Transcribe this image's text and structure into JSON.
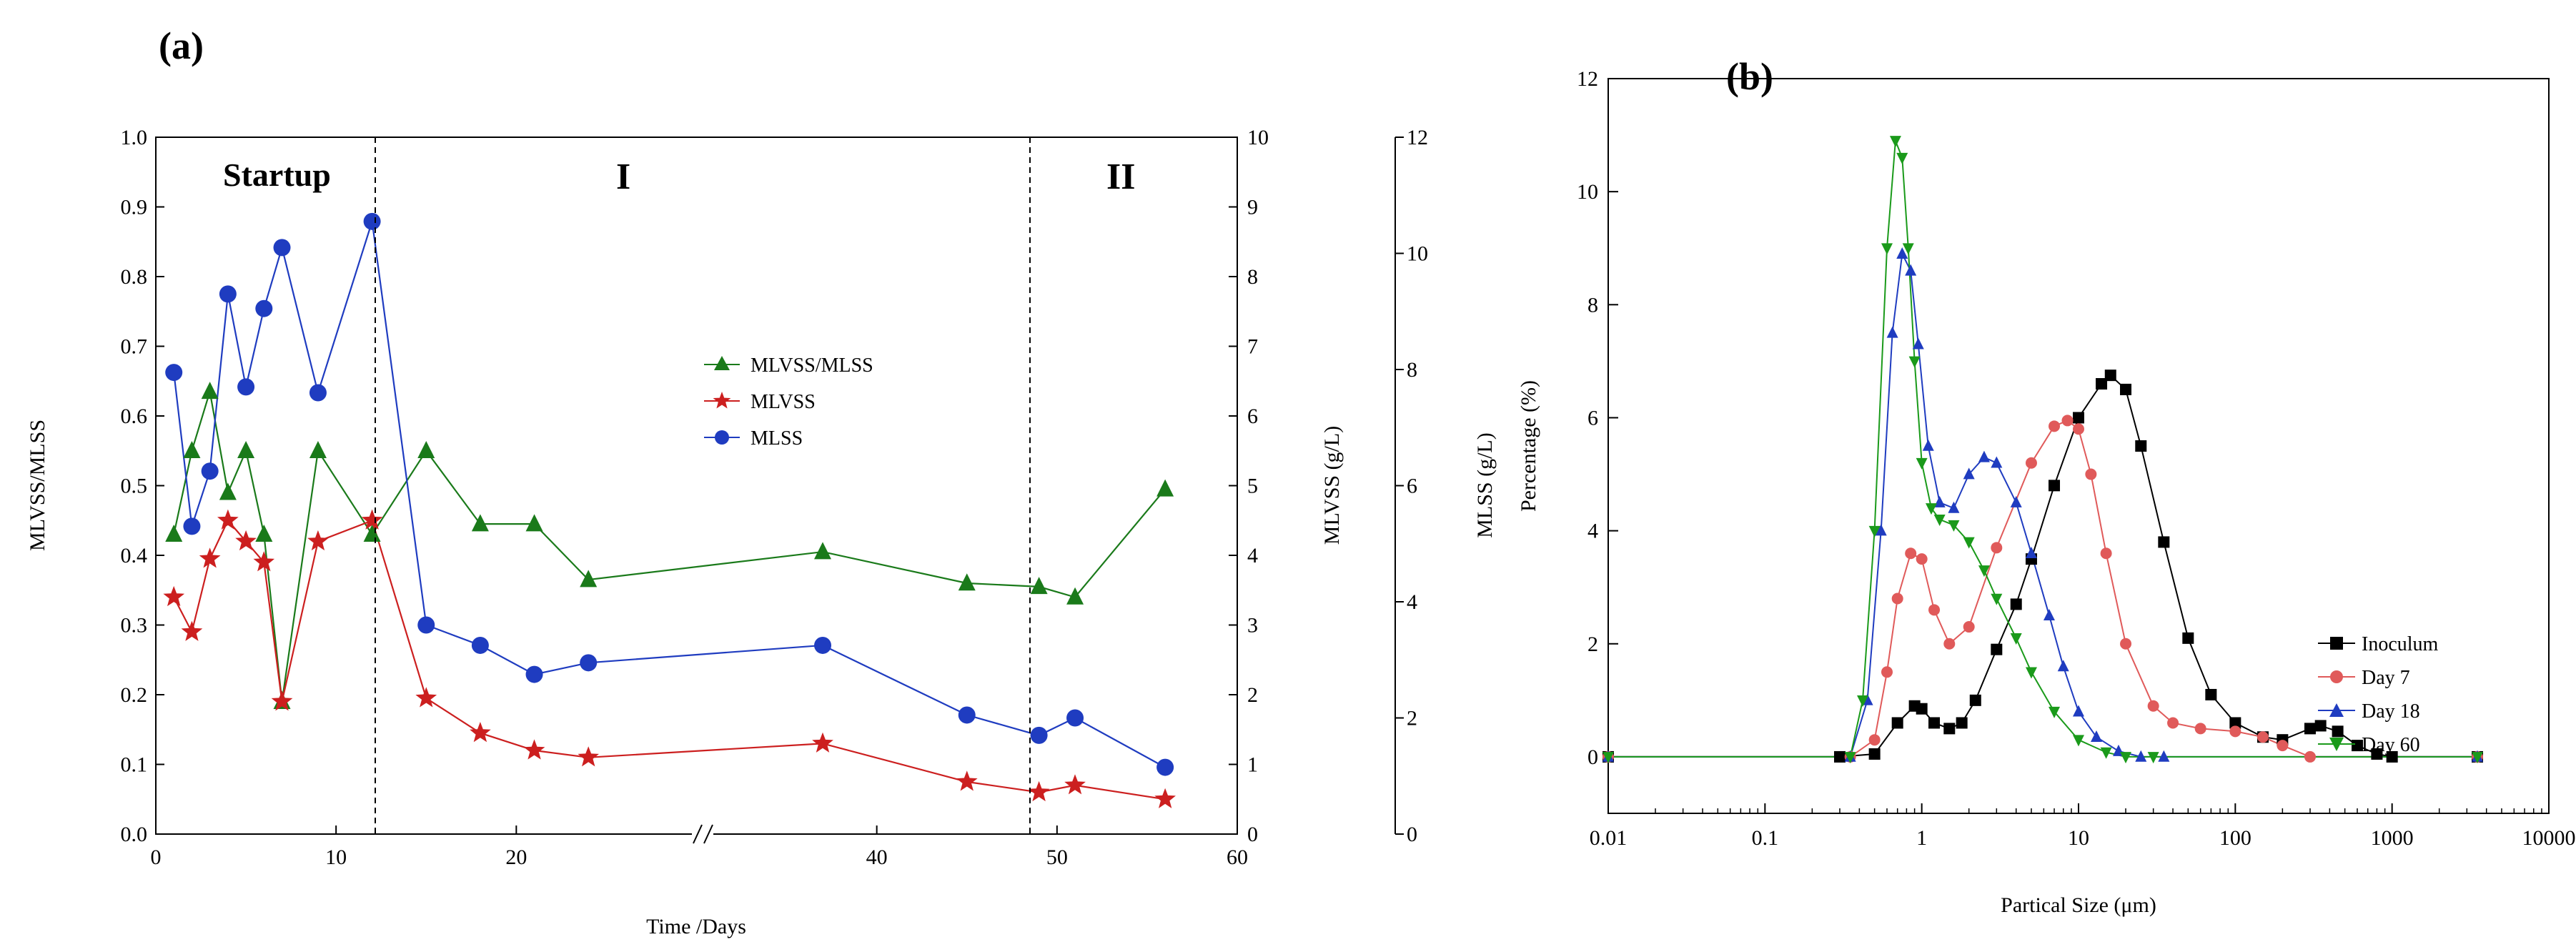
{
  "chart_data": [
    {
      "type": "line",
      "panel_label": "(a)",
      "xlabel": "Time /Days",
      "ylabel_left": "MLVSS/MLSS",
      "ylabel_right1": "MLVSS (g/L)",
      "ylabel_right2": "MLSS (g/L)",
      "xlim": [
        0,
        60
      ],
      "x_ticks": [
        "0",
        "10",
        "20",
        "40",
        "50",
        "60"
      ],
      "x_break": "//",
      "ylim_left": [
        0,
        1.0
      ],
      "y_ticks_left": [
        "0.0",
        "0.1",
        "0.2",
        "0.3",
        "0.4",
        "0.5",
        "0.6",
        "0.7",
        "0.8",
        "0.9",
        "1.0"
      ],
      "ylim_right1": [
        0,
        10
      ],
      "y_ticks_right1": [
        "0",
        "1",
        "2",
        "3",
        "4",
        "5",
        "6",
        "7",
        "8",
        "9",
        "10"
      ],
      "ylim_right2": [
        0,
        12
      ],
      "y_ticks_right2": [
        "0",
        "2",
        "4",
        "6",
        "8",
        "10",
        "12"
      ],
      "regions": [
        {
          "label": "Startup",
          "boundary_day": 10.3
        },
        {
          "label": "I",
          "boundary_day": 50
        },
        {
          "label": "II"
        }
      ],
      "legend_position": "center-right",
      "series": [
        {
          "name": "MLVSS/MLSS",
          "axis": "left",
          "marker": "triangle-up",
          "color": "#1a7a1a",
          "x": [
            1,
            2,
            3,
            4,
            5,
            6,
            7,
            9,
            12,
            15,
            18,
            21,
            24,
            37,
            45,
            49,
            51,
            56
          ],
          "values": [
            0.43,
            0.55,
            0.635,
            0.49,
            0.55,
            0.43,
            0.19,
            0.55,
            0.43,
            0.55,
            0.445,
            0.445,
            0.365,
            0.405,
            0.36,
            0.355,
            0.34,
            0.495
          ]
        },
        {
          "name": "MLVSS",
          "axis": "right1",
          "marker": "star",
          "color": "#cc1f1f",
          "x": [
            1,
            2,
            3,
            4,
            5,
            6,
            7,
            9,
            12,
            15,
            18,
            21,
            24,
            37,
            45,
            49,
            51,
            56
          ],
          "values": [
            3.4,
            2.9,
            3.95,
            4.5,
            4.2,
            3.9,
            1.9,
            4.2,
            4.5,
            1.95,
            1.45,
            1.2,
            1.1,
            1.3,
            0.75,
            0.6,
            0.7,
            0.5
          ]
        },
        {
          "name": "MLSS",
          "axis": "right2",
          "marker": "circle",
          "color": "#1f3cc0",
          "x": [
            1,
            2,
            3,
            4,
            5,
            6,
            7,
            9,
            12,
            15,
            18,
            21,
            24,
            37,
            45,
            49,
            51,
            56
          ],
          "values": [
            7.95,
            5.3,
            6.25,
            9.3,
            7.7,
            9.05,
            10.1,
            7.6,
            10.55,
            3.6,
            3.25,
            2.75,
            2.95,
            3.25,
            2.05,
            1.7,
            2.0,
            1.15
          ]
        }
      ]
    },
    {
      "type": "line",
      "panel_label": "(b)",
      "xlabel": "Partical Size (μm)",
      "ylabel": "Percentage (%)",
      "xscale": "log",
      "xlim": [
        0.01,
        10000
      ],
      "x_ticks": [
        "0.01",
        "0.1",
        "1",
        "10",
        "100",
        "1000",
        "10000"
      ],
      "ylim": [
        -1,
        12
      ],
      "y_ticks": [
        "0",
        "2",
        "4",
        "6",
        "8",
        "10",
        "12"
      ],
      "legend_position": "right",
      "series": [
        {
          "name": "Inoculum",
          "marker": "square",
          "color": "#000000",
          "x": [
            0.01,
            0.3,
            0.5,
            0.7,
            0.9,
            1.0,
            1.2,
            1.5,
            1.8,
            2.2,
            3.0,
            4.0,
            5.0,
            7.0,
            10,
            14,
            16,
            20,
            25,
            35,
            50,
            70,
            100,
            150,
            200,
            300,
            350,
            450,
            600,
            800,
            1000,
            3500
          ],
          "values": [
            0,
            0,
            0.05,
            0.6,
            0.9,
            0.85,
            0.6,
            0.5,
            0.6,
            1.0,
            1.9,
            2.7,
            3.5,
            4.8,
            6.0,
            6.6,
            6.75,
            6.5,
            5.5,
            3.8,
            2.1,
            1.1,
            0.6,
            0.35,
            0.3,
            0.5,
            0.55,
            0.45,
            0.2,
            0.05,
            0,
            0
          ]
        },
        {
          "name": "Day 7",
          "marker": "circle",
          "color": "#e05a5a",
          "x": [
            0.01,
            0.35,
            0.5,
            0.6,
            0.7,
            0.85,
            1.0,
            1.2,
            1.5,
            2.0,
            3.0,
            5.0,
            7.0,
            8.5,
            10,
            12,
            15,
            20,
            30,
            40,
            60,
            100,
            150,
            200,
            300,
            3500
          ],
          "values": [
            0,
            0,
            0.3,
            1.5,
            2.8,
            3.6,
            3.5,
            2.6,
            2.0,
            2.3,
            3.7,
            5.2,
            5.85,
            5.95,
            5.8,
            5.0,
            3.6,
            2.0,
            0.9,
            0.6,
            0.5,
            0.45,
            0.35,
            0.2,
            0,
            0
          ]
        },
        {
          "name": "Day 18",
          "marker": "triangle-up",
          "color": "#1f3cc0",
          "x": [
            0.01,
            0.35,
            0.45,
            0.55,
            0.65,
            0.75,
            0.85,
            0.95,
            1.1,
            1.3,
            1.6,
            2.0,
            2.5,
            3.0,
            4.0,
            5.0,
            6.5,
            8.0,
            10,
            13,
            18,
            25,
            35,
            3500
          ],
          "values": [
            0,
            0,
            1.0,
            4.0,
            7.5,
            8.9,
            8.6,
            7.3,
            5.5,
            4.5,
            4.4,
            5.0,
            5.3,
            5.2,
            4.5,
            3.6,
            2.5,
            1.6,
            0.8,
            0.35,
            0.1,
            0,
            0,
            0
          ]
        },
        {
          "name": "Day 60",
          "marker": "triangle-down",
          "color": "#1a9a1a",
          "x": [
            0.01,
            0.35,
            0.42,
            0.5,
            0.6,
            0.68,
            0.75,
            0.82,
            0.9,
            1.0,
            1.15,
            1.3,
            1.6,
            2.0,
            2.5,
            3.0,
            4.0,
            5.0,
            7.0,
            10,
            15,
            20,
            30,
            3500
          ],
          "values": [
            0,
            0,
            1.0,
            4.0,
            9.0,
            10.9,
            10.6,
            9.0,
            7.0,
            5.2,
            4.4,
            4.2,
            4.1,
            3.8,
            3.3,
            2.8,
            2.1,
            1.5,
            0.8,
            0.3,
            0.08,
            0,
            0,
            0
          ]
        }
      ]
    }
  ]
}
